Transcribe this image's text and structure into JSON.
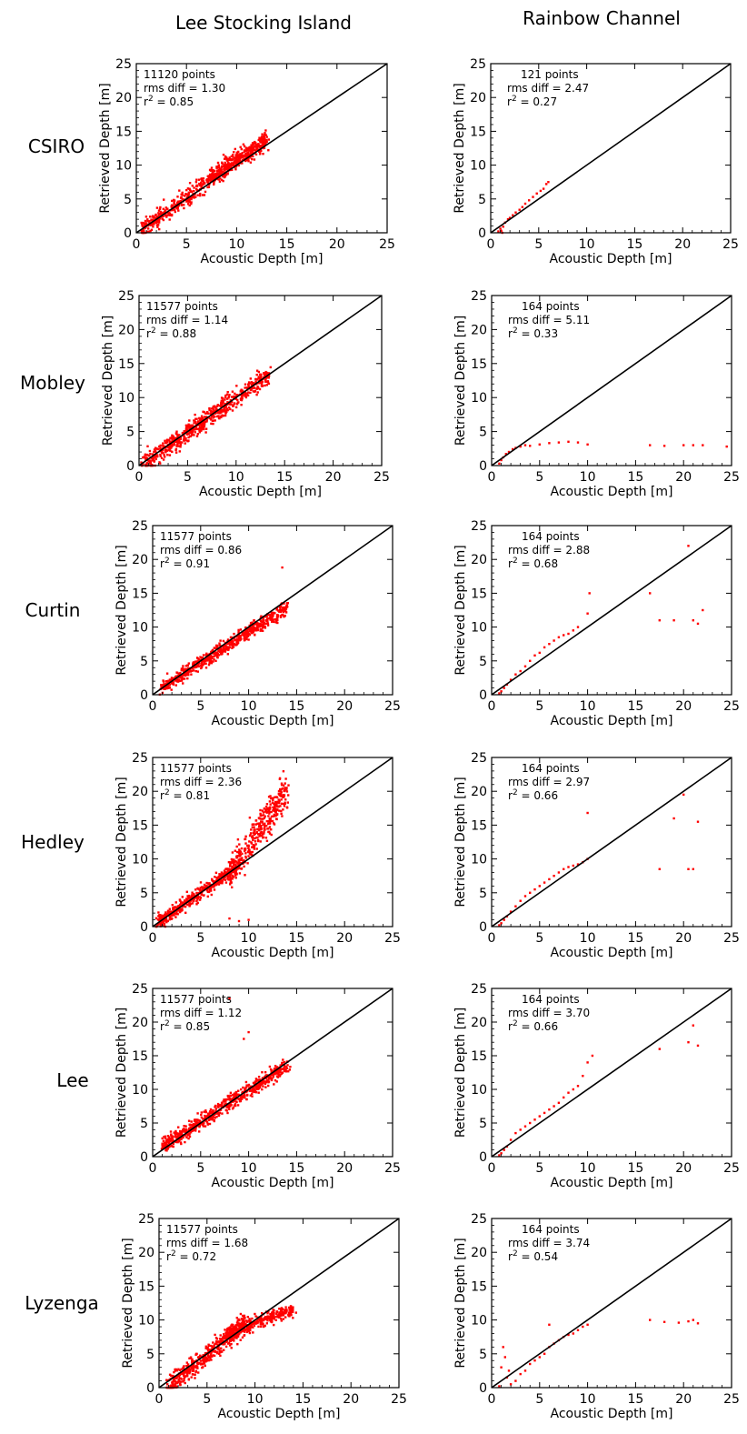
{
  "column_titles": [
    "Lee Stocking Island",
    "Rainbow Channel"
  ],
  "row_labels": [
    "CSIRO",
    "Mobley",
    "Curtin",
    "Hedley",
    "Lee",
    "Lyzenga"
  ],
  "colors": {
    "points": "#ff0000",
    "identity_line": "#000000",
    "frame": "#000000"
  },
  "chart_data": [
    {
      "type": "scatter",
      "site": "Lee Stocking Island",
      "method": "CSIRO",
      "xlabel": "Acoustic Depth [m]",
      "ylabel": "Retrieved Depth [m]",
      "xlim": [
        0,
        25
      ],
      "ylim": [
        0,
        25
      ],
      "xticks": [
        0,
        5,
        10,
        15,
        20,
        25
      ],
      "yticks": [
        0,
        5,
        10,
        15,
        20,
        25
      ],
      "reference_line": "1:1",
      "stats": {
        "points": "11120 points",
        "rms": "rms diff = 1.30",
        "r2": "= 0.85"
      },
      "point_cloud": [
        {
          "x": [
            0.5,
            13
          ],
          "y": [
            0.2,
            14
          ],
          "count": 520,
          "spread": 1.3,
          "slope": 0.9
        },
        {
          "x": [
            7,
            13
          ],
          "y": [
            8,
            13.5
          ],
          "count": 220,
          "spread": 1.2,
          "slope": 0.2
        }
      ]
    },
    {
      "type": "scatter",
      "site": "Rainbow Channel",
      "method": "CSIRO",
      "xlabel": "Acoustic Depth [m]",
      "ylabel": "Retrieved Depth [m]",
      "xlim": [
        0,
        25
      ],
      "ylim": [
        0,
        25
      ],
      "xticks": [
        0,
        5,
        10,
        15,
        20,
        25
      ],
      "yticks": [
        0,
        5,
        10,
        15,
        20,
        25
      ],
      "reference_line": "1:1",
      "stats": {
        "points": "121 points",
        "rms": "rms diff = 2.47",
        "r2": "= 0.27"
      },
      "points": [
        [
          0.8,
          0.2
        ],
        [
          1.0,
          0.6
        ],
        [
          1.1,
          0.3
        ],
        [
          1.2,
          0.0
        ],
        [
          1.3,
          0.9
        ],
        [
          1.5,
          1.5
        ],
        [
          1.8,
          2.0
        ],
        [
          2.0,
          2.2
        ],
        [
          2.3,
          2.6
        ],
        [
          2.6,
          3.0
        ],
        [
          3.0,
          3.4
        ],
        [
          3.3,
          3.8
        ],
        [
          3.6,
          4.3
        ],
        [
          4.0,
          4.8
        ],
        [
          4.4,
          5.3
        ],
        [
          4.8,
          5.8
        ],
        [
          5.2,
          6.2
        ],
        [
          5.5,
          6.5
        ],
        [
          5.8,
          7.2
        ],
        [
          6.0,
          7.5
        ]
      ]
    },
    {
      "type": "scatter",
      "site": "Lee Stocking Island",
      "method": "Mobley",
      "xlabel": "Acoustic Depth [m]",
      "ylabel": "Retrieved Depth [m]",
      "xlim": [
        0,
        25
      ],
      "ylim": [
        0,
        25
      ],
      "xticks": [
        0,
        5,
        10,
        15,
        20,
        25
      ],
      "yticks": [
        0,
        5,
        10,
        15,
        20,
        25
      ],
      "reference_line": "1:1",
      "stats": {
        "points": "11577 points",
        "rms": "rms diff = 1.14",
        "r2": "= 0.88"
      },
      "point_cloud": [
        {
          "x": [
            0.5,
            13.5
          ],
          "y": [
            0.2,
            13.5
          ],
          "count": 650,
          "spread": 1.4,
          "slope": 0.9
        }
      ]
    },
    {
      "type": "scatter",
      "site": "Rainbow Channel",
      "method": "Mobley",
      "xlabel": "Acoustic Depth [m]",
      "ylabel": "Retrieved Depth [m]",
      "xlim": [
        0,
        25
      ],
      "ylim": [
        0,
        25
      ],
      "xticks": [
        0,
        5,
        10,
        15,
        20,
        25
      ],
      "yticks": [
        0,
        5,
        10,
        15,
        20,
        25
      ],
      "reference_line": "1:1",
      "stats": {
        "points": "164 points",
        "rms": "rms diff = 5.11",
        "r2": "= 0.33"
      },
      "points": [
        [
          0.8,
          0.3
        ],
        [
          1.0,
          0.8
        ],
        [
          1.2,
          1.2
        ],
        [
          1.5,
          1.7
        ],
        [
          1.8,
          2.0
        ],
        [
          2.2,
          2.4
        ],
        [
          2.5,
          2.6
        ],
        [
          3.0,
          2.8
        ],
        [
          3.5,
          3.0
        ],
        [
          4.0,
          2.9
        ],
        [
          5.0,
          3.1
        ],
        [
          6.0,
          3.3
        ],
        [
          7.0,
          3.4
        ],
        [
          8.0,
          3.5
        ],
        [
          9.0,
          3.4
        ],
        [
          10.0,
          3.1
        ],
        [
          16.5,
          3.0
        ],
        [
          18.0,
          2.9
        ],
        [
          20.0,
          3.0
        ],
        [
          21.0,
          3.0
        ],
        [
          22.0,
          3.0
        ],
        [
          24.5,
          2.8
        ]
      ]
    },
    {
      "type": "scatter",
      "site": "Lee Stocking Island",
      "method": "Curtin",
      "xlabel": "Acoustic Depth [m]",
      "ylabel": "Retrieved Depth [m]",
      "xlim": [
        0,
        25
      ],
      "ylim": [
        0,
        25
      ],
      "xticks": [
        0,
        5,
        10,
        15,
        20,
        25
      ],
      "yticks": [
        0,
        5,
        10,
        15,
        20,
        25
      ],
      "reference_line": "1:1",
      "stats": {
        "points": "11577 points",
        "rms": "rms diff = 0.86",
        "r2": "= 0.91"
      },
      "point_cloud": [
        {
          "x": [
            1,
            14
          ],
          "y": [
            1,
            13
          ],
          "count": 650,
          "spread": 1.0,
          "slope": 0.85
        }
      ],
      "points": [
        [
          13.5,
          18.8
        ]
      ]
    },
    {
      "type": "scatter",
      "site": "Rainbow Channel",
      "method": "Curtin",
      "xlabel": "Acoustic Depth [m]",
      "ylabel": "Retrieved Depth [m]",
      "xlim": [
        0,
        25
      ],
      "ylim": [
        0,
        25
      ],
      "xticks": [
        0,
        5,
        10,
        15,
        20,
        25
      ],
      "yticks": [
        0,
        5,
        10,
        15,
        20,
        25
      ],
      "reference_line": "1:1",
      "stats": {
        "points": "164 points",
        "rms": "rms diff = 2.88",
        "r2": "= 0.68"
      },
      "points": [
        [
          0.8,
          0.2
        ],
        [
          1.0,
          0.5
        ],
        [
          1.3,
          1.0
        ],
        [
          1.6,
          1.5
        ],
        [
          2.0,
          2.2
        ],
        [
          2.5,
          3.0
        ],
        [
          3.0,
          3.5
        ],
        [
          3.5,
          4.2
        ],
        [
          4.0,
          5.0
        ],
        [
          4.5,
          5.8
        ],
        [
          5.0,
          6.2
        ],
        [
          5.5,
          7.0
        ],
        [
          6.0,
          7.5
        ],
        [
          6.5,
          8.0
        ],
        [
          7.0,
          8.5
        ],
        [
          7.5,
          8.8
        ],
        [
          8.0,
          9.0
        ],
        [
          8.5,
          9.5
        ],
        [
          9.0,
          10.0
        ],
        [
          10.0,
          12.0
        ],
        [
          10.2,
          15.0
        ],
        [
          16.5,
          15.0
        ],
        [
          17.5,
          11.0
        ],
        [
          19.0,
          11.0
        ],
        [
          20.5,
          22.0
        ],
        [
          21.0,
          11.0
        ],
        [
          21.5,
          10.5
        ],
        [
          22.0,
          12.5
        ]
      ]
    },
    {
      "type": "scatter",
      "site": "Lee Stocking Island",
      "method": "Hedley",
      "xlabel": "Acoustic Depth [m]",
      "ylabel": "Retrieved Depth [m]",
      "xlim": [
        0,
        25
      ],
      "ylim": [
        0,
        25
      ],
      "xticks": [
        0,
        5,
        10,
        15,
        20,
        25
      ],
      "yticks": [
        0,
        5,
        10,
        15,
        20,
        25
      ],
      "reference_line": "1:1",
      "stats": {
        "points": "11577 points",
        "rms": "rms diff = 2.36",
        "r2": "= 0.81"
      },
      "point_cloud": [
        {
          "x": [
            0.5,
            9
          ],
          "y": [
            0.5,
            9
          ],
          "count": 420,
          "spread": 1.0,
          "slope": 0.9
        },
        {
          "x": [
            8,
            14
          ],
          "y": [
            8,
            20
          ],
          "count": 380,
          "spread": 2.5,
          "slope": 0.5
        }
      ],
      "points": [
        [
          8.0,
          1.2
        ],
        [
          9.0,
          0.8
        ],
        [
          10.0,
          1.0
        ]
      ]
    },
    {
      "type": "scatter",
      "site": "Rainbow Channel",
      "method": "Hedley",
      "xlabel": "Acoustic Depth [m]",
      "ylabel": "Retrieved Depth [m]",
      "xlim": [
        0,
        25
      ],
      "ylim": [
        0,
        25
      ],
      "xticks": [
        0,
        5,
        10,
        15,
        20,
        25
      ],
      "yticks": [
        0,
        5,
        10,
        15,
        20,
        25
      ],
      "reference_line": "1:1",
      "stats": {
        "points": "164 points",
        "rms": "rms diff = 2.97",
        "r2": "= 0.66"
      },
      "points": [
        [
          0.8,
          0.2
        ],
        [
          1.0,
          0.5
        ],
        [
          1.3,
          1.0
        ],
        [
          1.6,
          1.5
        ],
        [
          2.0,
          2.2
        ],
        [
          2.5,
          3.0
        ],
        [
          3.0,
          3.8
        ],
        [
          3.5,
          4.5
        ],
        [
          4.0,
          5.0
        ],
        [
          4.5,
          5.5
        ],
        [
          5.0,
          6.0
        ],
        [
          5.5,
          6.5
        ],
        [
          6.0,
          7.0
        ],
        [
          6.5,
          7.5
        ],
        [
          7.0,
          8.0
        ],
        [
          7.5,
          8.5
        ],
        [
          8.0,
          8.8
        ],
        [
          8.5,
          9.0
        ],
        [
          9.0,
          9.2
        ],
        [
          9.5,
          9.5
        ],
        [
          10.0,
          10.0
        ],
        [
          10.0,
          16.8
        ],
        [
          17.5,
          8.5
        ],
        [
          19.0,
          16.0
        ],
        [
          20.0,
          19.5
        ],
        [
          20.5,
          8.5
        ],
        [
          21.0,
          8.5
        ],
        [
          21.5,
          15.5
        ]
      ]
    },
    {
      "type": "scatter",
      "site": "Lee Stocking Island",
      "method": "Lee",
      "xlabel": "Acoustic Depth [m]",
      "ylabel": "Retrieved Depth [m]",
      "xlim": [
        0,
        25
      ],
      "ylim": [
        0,
        25
      ],
      "xticks": [
        0,
        5,
        10,
        15,
        20,
        25
      ],
      "yticks": [
        0,
        5,
        10,
        15,
        20,
        25
      ],
      "reference_line": "1:1",
      "stats": {
        "points": "11577 points",
        "rms": "rms diff = 1.12",
        "r2": "= 0.85"
      },
      "point_cloud": [
        {
          "x": [
            1,
            14
          ],
          "y": [
            1.5,
            13.5
          ],
          "count": 650,
          "spread": 1.1,
          "slope": 0.8
        }
      ],
      "points": [
        [
          9.5,
          17.5
        ],
        [
          10.0,
          18.5
        ],
        [
          8.0,
          23.5
        ]
      ]
    },
    {
      "type": "scatter",
      "site": "Rainbow Channel",
      "method": "Lee",
      "xlabel": "Acoustic Depth [m]",
      "ylabel": "Retrieved Depth [m]",
      "xlim": [
        0,
        25
      ],
      "ylim": [
        0,
        25
      ],
      "xticks": [
        0,
        5,
        10,
        15,
        20,
        25
      ],
      "yticks": [
        0,
        5,
        10,
        15,
        20,
        25
      ],
      "reference_line": "1:1",
      "stats": {
        "points": "164 points",
        "rms": "rms diff = 3.70",
        "r2": "= 0.66"
      },
      "points": [
        [
          0.8,
          0.2
        ],
        [
          1.0,
          0.5
        ],
        [
          1.3,
          1.0
        ],
        [
          1.6,
          1.5
        ],
        [
          2.0,
          2.5
        ],
        [
          2.5,
          3.5
        ],
        [
          3.0,
          4.0
        ],
        [
          3.5,
          4.5
        ],
        [
          4.0,
          5.0
        ],
        [
          4.5,
          5.5
        ],
        [
          5.0,
          6.0
        ],
        [
          5.5,
          6.5
        ],
        [
          6.0,
          7.0
        ],
        [
          6.5,
          7.5
        ],
        [
          7.0,
          8.0
        ],
        [
          7.5,
          8.8
        ],
        [
          8.0,
          9.5
        ],
        [
          8.5,
          10.0
        ],
        [
          9.0,
          10.5
        ],
        [
          9.5,
          12.0
        ],
        [
          10.0,
          14.0
        ],
        [
          10.5,
          15.0
        ],
        [
          17.5,
          16.0
        ],
        [
          20.5,
          17.0
        ],
        [
          21.5,
          16.5
        ],
        [
          21.0,
          19.5
        ]
      ]
    },
    {
      "type": "scatter",
      "site": "Lee Stocking Island",
      "method": "Lyzenga",
      "xlabel": "Acoustic Depth [m]",
      "ylabel": "Retrieved Depth [m]",
      "xlim": [
        0,
        25
      ],
      "ylim": [
        0,
        25
      ],
      "xticks": [
        0,
        5,
        10,
        15,
        20,
        25
      ],
      "yticks": [
        0,
        5,
        10,
        15,
        20,
        25
      ],
      "reference_line": "1:1",
      "stats": {
        "points": "11577 points",
        "rms": "rms diff = 1.68",
        "r2": "= 0.72"
      },
      "point_cloud": [
        {
          "x": [
            1,
            9
          ],
          "y": [
            0.2,
            9.5
          ],
          "count": 450,
          "spread": 1.5,
          "slope": 1.0
        },
        {
          "x": [
            7,
            14
          ],
          "y": [
            8,
            11.5
          ],
          "count": 320,
          "spread": 1.0,
          "slope": 0.15
        }
      ]
    },
    {
      "type": "scatter",
      "site": "Rainbow Channel",
      "method": "Lyzenga",
      "xlabel": "Acoustic Depth [m]",
      "ylabel": "Retrieved Depth [m]",
      "xlim": [
        0,
        25
      ],
      "ylim": [
        0,
        25
      ],
      "xticks": [
        0,
        5,
        10,
        15,
        20,
        25
      ],
      "yticks": [
        0,
        5,
        10,
        15,
        20,
        25
      ],
      "reference_line": "1:1",
      "stats": {
        "points": "164 points",
        "rms": "rms diff = 3.74",
        "r2": "= 0.54"
      },
      "points": [
        [
          0.8,
          0.2
        ],
        [
          1.0,
          3.0
        ],
        [
          1.2,
          6.0
        ],
        [
          1.4,
          4.5
        ],
        [
          1.6,
          1.5
        ],
        [
          1.8,
          2.5
        ],
        [
          2.0,
          0.5
        ],
        [
          2.5,
          1.0
        ],
        [
          3.0,
          2.0
        ],
        [
          3.5,
          2.5
        ],
        [
          4.0,
          3.5
        ],
        [
          4.5,
          4.0
        ],
        [
          5.0,
          4.5
        ],
        [
          5.5,
          5.0
        ],
        [
          6.0,
          6.0
        ],
        [
          6.5,
          6.5
        ],
        [
          7.0,
          7.0
        ],
        [
          7.5,
          7.5
        ],
        [
          8.0,
          7.8
        ],
        [
          8.5,
          8.0
        ],
        [
          9.0,
          8.5
        ],
        [
          9.5,
          9.0
        ],
        [
          10.0,
          9.3
        ],
        [
          6.0,
          9.3
        ],
        [
          16.5,
          10.0
        ],
        [
          18.0,
          9.7
        ],
        [
          19.5,
          9.6
        ],
        [
          20.5,
          9.8
        ],
        [
          21.0,
          10.0
        ],
        [
          21.5,
          9.5
        ]
      ]
    }
  ]
}
